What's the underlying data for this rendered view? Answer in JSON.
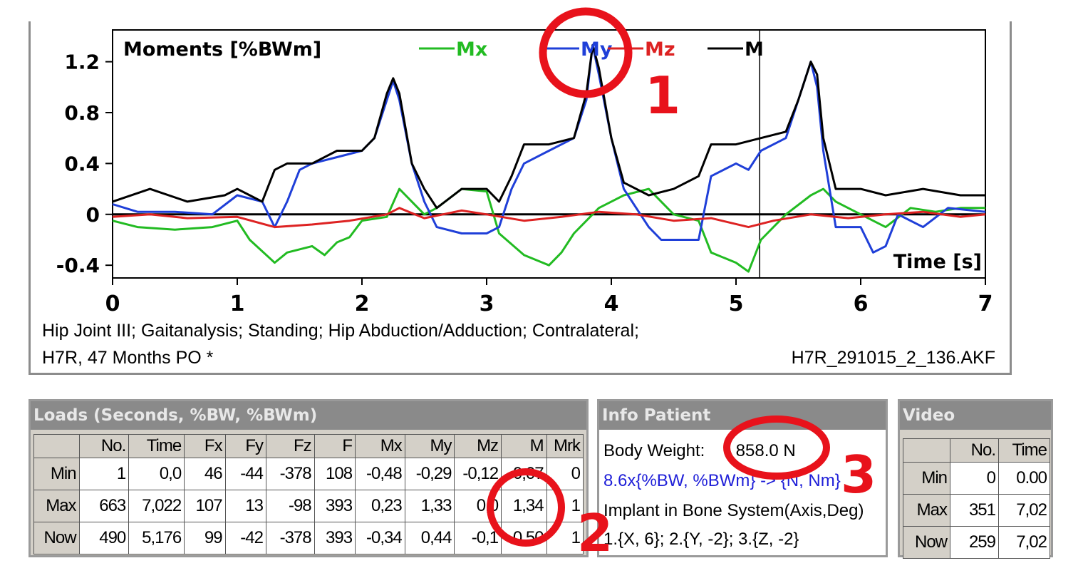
{
  "chart_data": {
    "type": "line",
    "title": "Moments  [%BWm]",
    "xlabel": "Time  [s]",
    "ylabel": "",
    "xlim": [
      0,
      7
    ],
    "ylim": [
      -0.5,
      1.45
    ],
    "x_ticks": [
      "0",
      "1",
      "2",
      "3",
      "4",
      "5",
      "6",
      "7"
    ],
    "y_ticks": [
      {
        "value": 1.2,
        "label": "1.2"
      },
      {
        "value": 0.8,
        "label": "0.8"
      },
      {
        "value": 0.4,
        "label": "0.4"
      },
      {
        "value": 0,
        "label": "0"
      },
      {
        "value": -0.4,
        "label": "-0.4"
      }
    ],
    "cursor_x": 5.19,
    "legend_position": "top",
    "series": [
      {
        "name": "Mx",
        "color": "#22bb22",
        "x": [
          0,
          0.2,
          0.5,
          0.8,
          1.0,
          1.1,
          1.3,
          1.4,
          1.6,
          1.7,
          1.8,
          1.9,
          2.0,
          2.2,
          2.3,
          2.4,
          2.5,
          2.6,
          2.8,
          3.0,
          3.1,
          3.3,
          3.5,
          3.6,
          3.7,
          3.8,
          3.9,
          4.0,
          4.1,
          4.3,
          4.5,
          4.7,
          4.8,
          5.0,
          5.1,
          5.2,
          5.4,
          5.6,
          5.7,
          5.8,
          6.0,
          6.2,
          6.4,
          6.6,
          6.8,
          7.0
        ],
        "y": [
          -0.05,
          -0.1,
          -0.12,
          -0.1,
          -0.05,
          -0.2,
          -0.38,
          -0.3,
          -0.25,
          -0.32,
          -0.22,
          -0.18,
          -0.05,
          -0.02,
          0.2,
          0.1,
          0.0,
          0.05,
          0.2,
          0.18,
          -0.15,
          -0.32,
          -0.4,
          -0.3,
          -0.15,
          -0.05,
          0.05,
          0.1,
          0.15,
          0.2,
          0.0,
          -0.05,
          -0.3,
          -0.38,
          -0.45,
          -0.2,
          0.0,
          0.15,
          0.2,
          0.1,
          0.0,
          -0.1,
          0.05,
          0.02,
          0.05,
          0.05
        ]
      },
      {
        "name": "My",
        "color": "#1f3fd8",
        "x": [
          0,
          0.2,
          0.5,
          0.8,
          1.0,
          1.2,
          1.3,
          1.4,
          1.5,
          1.6,
          1.8,
          2.0,
          2.1,
          2.2,
          2.25,
          2.3,
          2.4,
          2.5,
          2.6,
          2.8,
          3.0,
          3.1,
          3.2,
          3.3,
          3.5,
          3.7,
          3.8,
          3.85,
          3.9,
          4.0,
          4.1,
          4.3,
          4.4,
          4.5,
          4.7,
          4.8,
          5.0,
          5.1,
          5.2,
          5.4,
          5.5,
          5.6,
          5.65,
          5.7,
          5.8,
          6.0,
          6.1,
          6.2,
          6.3,
          6.5,
          6.7,
          7.0
        ],
        "y": [
          0.08,
          0.02,
          0.02,
          0.0,
          0.15,
          0.1,
          -0.1,
          0.1,
          0.35,
          0.4,
          0.45,
          0.5,
          0.6,
          0.9,
          1.05,
          0.9,
          0.4,
          0.1,
          -0.1,
          -0.15,
          -0.15,
          -0.1,
          0.2,
          0.4,
          0.5,
          0.6,
          0.9,
          1.33,
          1.1,
          0.6,
          0.2,
          -0.1,
          -0.2,
          -0.2,
          -0.2,
          0.3,
          0.4,
          0.35,
          0.5,
          0.6,
          0.9,
          1.2,
          1.0,
          0.5,
          -0.1,
          -0.1,
          -0.3,
          -0.25,
          0.0,
          -0.1,
          0.05,
          0.02
        ]
      },
      {
        "name": "Mz",
        "color": "#dd2222",
        "x": [
          0,
          0.3,
          0.6,
          1.0,
          1.3,
          1.6,
          1.9,
          2.2,
          2.3,
          2.5,
          2.8,
          3.0,
          3.3,
          3.6,
          3.9,
          4.2,
          4.5,
          4.8,
          5.1,
          5.3,
          5.6,
          5.9,
          6.2,
          6.5,
          6.8,
          7.0
        ],
        "y": [
          -0.02,
          0.0,
          -0.03,
          -0.02,
          -0.1,
          -0.08,
          -0.05,
          0.0,
          0.05,
          -0.03,
          0.03,
          0.0,
          -0.05,
          -0.02,
          0.02,
          0.0,
          -0.05,
          -0.03,
          -0.1,
          -0.05,
          0.0,
          -0.03,
          0.0,
          0.02,
          -0.02,
          0.0
        ]
      },
      {
        "name": "M",
        "color": "#000000",
        "x": [
          0,
          0.3,
          0.6,
          0.9,
          1.0,
          1.1,
          1.2,
          1.3,
          1.4,
          1.6,
          1.8,
          2.0,
          2.1,
          2.2,
          2.25,
          2.3,
          2.4,
          2.5,
          2.6,
          2.8,
          3.0,
          3.1,
          3.2,
          3.3,
          3.5,
          3.7,
          3.8,
          3.85,
          3.9,
          4.0,
          4.1,
          4.3,
          4.5,
          4.7,
          4.8,
          5.0,
          5.2,
          5.4,
          5.5,
          5.6,
          5.65,
          5.7,
          5.8,
          6.0,
          6.2,
          6.5,
          6.8,
          7.0
        ],
        "y": [
          0.1,
          0.2,
          0.1,
          0.15,
          0.2,
          0.15,
          0.1,
          0.35,
          0.4,
          0.4,
          0.5,
          0.5,
          0.6,
          0.95,
          1.07,
          0.95,
          0.4,
          0.2,
          0.05,
          0.2,
          0.2,
          0.1,
          0.3,
          0.55,
          0.55,
          0.6,
          0.95,
          1.33,
          1.15,
          0.6,
          0.25,
          0.15,
          0.2,
          0.3,
          0.55,
          0.55,
          0.6,
          0.65,
          0.9,
          1.2,
          1.1,
          0.6,
          0.2,
          0.2,
          0.15,
          0.2,
          0.15,
          0.15
        ]
      }
    ]
  },
  "caption": {
    "line1": "Hip Joint III; Gaitanalysis; Standing; Hip Abduction/Adduction; Contralateral;",
    "line2_left": "H7R, 47 Months PO  *",
    "line2_right": "H7R_291015_2_136.AKF"
  },
  "loads": {
    "title": "Loads    (Seconds, %BW, %BWm)",
    "headers": [
      "No.",
      "Time",
      "Fx",
      "Fy",
      "Fz",
      "F",
      "Mx",
      "My",
      "Mz",
      "M",
      "Mrk"
    ],
    "rows": [
      {
        "label": "Min",
        "cells": [
          "1",
          "0,0",
          "46",
          "-44",
          "-378",
          "108",
          "-0,48",
          "-0,29",
          "-0,12",
          "0,07",
          "0"
        ]
      },
      {
        "label": "Max",
        "cells": [
          "663",
          "7,022",
          "107",
          "13",
          "-98",
          "393",
          "0,23",
          "1,33",
          "0,0",
          "1,34",
          "1"
        ]
      },
      {
        "label": "Now",
        "cells": [
          "490",
          "5,176",
          "99",
          "-42",
          "-378",
          "393",
          "-0,34",
          "0,44",
          "-0,1",
          "0,50",
          "1"
        ]
      }
    ]
  },
  "info_patient": {
    "title": "Info Patient",
    "body_weight_label": "Body Weight:",
    "body_weight_value": "858.0 N",
    "conversion": "8.6x{%BW, %BWm} -> {N, Nm}",
    "implant_label": "Implant in Bone System(Axis,Deg)",
    "implant_values": "1.{X, 6}; 2.{Y, -2}; 3.{Z, -2}"
  },
  "video": {
    "title": "Video",
    "headers": [
      "No.",
      "Time"
    ],
    "rows": [
      {
        "label": "Min",
        "cells": [
          "0",
          "0.00"
        ]
      },
      {
        "label": "Max",
        "cells": [
          "351",
          "7,02"
        ]
      },
      {
        "label": "Now",
        "cells": [
          "259",
          "7,02"
        ]
      }
    ]
  },
  "annotations": {
    "marker1": "1",
    "marker2": "2",
    "marker3": "3",
    "color": "#e8121b"
  }
}
